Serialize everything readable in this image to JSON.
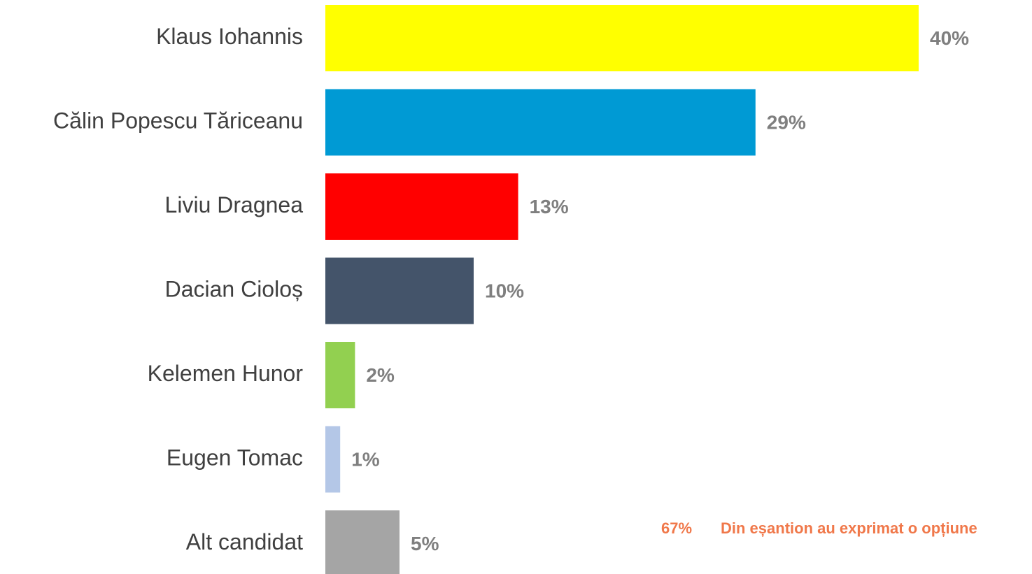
{
  "chart_data": {
    "type": "bar",
    "orientation": "horizontal",
    "categories": [
      "Klaus Iohannis",
      "Călin Popescu Tăriceanu",
      "Liviu Dragnea",
      "Dacian Cioloș",
      "Kelemen Hunor",
      "Eugen Tomac",
      "Alt candidat"
    ],
    "values": [
      40,
      29,
      13,
      10,
      2,
      1,
      5
    ],
    "value_labels": [
      "40%",
      "29%",
      "13%",
      "10%",
      "2%",
      "1%",
      "5%"
    ],
    "colors": [
      "#ffff00",
      "#009ad4",
      "#ff0000",
      "#44546a",
      "#92d050",
      "#b4c7e7",
      "#a5a5a5"
    ],
    "annotation": [
      "67%",
      "Din eșantion au exprimat o opțiune"
    ]
  }
}
